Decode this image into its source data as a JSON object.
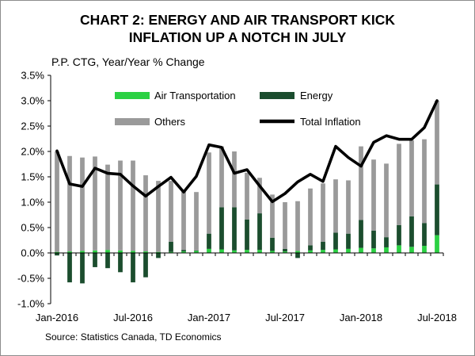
{
  "colors": {
    "air": "#2bd143",
    "energy": "#1b4d2e",
    "others": "#9a9a9a",
    "total": "#000000"
  },
  "chart_data": {
    "type": "bar",
    "title_lines": [
      "CHART 2: ENERGY AND AIR TRANSPORT KICK",
      "INFLATION UP A NOTCH IN JULY"
    ],
    "ylabel": "P.P. CTG, Year/Year % Change",
    "source": "Source: Statistics Canada, TD Economics",
    "ylim": [
      -1.0,
      3.5
    ],
    "yticks": [
      -1.0,
      -0.5,
      0.0,
      0.5,
      1.0,
      1.5,
      2.0,
      2.5,
      3.0,
      3.5
    ],
    "ytick_labels": [
      "-1.0%",
      "-0.5%",
      "0.0%",
      "0.5%",
      "1.0%",
      "1.5%",
      "2.0%",
      "2.5%",
      "3.0%",
      "3.5%"
    ],
    "xtick_labels": [
      {
        "index": 0,
        "label": "Jan-2016"
      },
      {
        "index": 6,
        "label": "Jul-2016"
      },
      {
        "index": 12,
        "label": "Jan-2017"
      },
      {
        "index": 18,
        "label": "Jul-2017"
      },
      {
        "index": 24,
        "label": "Jan-2018"
      },
      {
        "index": 30,
        "label": "Jul-2018"
      }
    ],
    "categories": [
      "Jan-2016",
      "Feb-2016",
      "Mar-2016",
      "Apr-2016",
      "May-2016",
      "Jun-2016",
      "Jul-2016",
      "Aug-2016",
      "Sep-2016",
      "Oct-2016",
      "Nov-2016",
      "Dec-2016",
      "Jan-2017",
      "Feb-2017",
      "Mar-2017",
      "Apr-2017",
      "May-2017",
      "Jun-2017",
      "Jul-2017",
      "Aug-2017",
      "Sep-2017",
      "Oct-2017",
      "Nov-2017",
      "Dec-2017",
      "Jan-2018",
      "Feb-2018",
      "Mar-2018",
      "Apr-2018",
      "May-2018",
      "Jun-2018",
      "Jul-2018"
    ],
    "series": [
      {
        "name": "Air Transportation",
        "type": "bar",
        "values": [
          0.02,
          0.03,
          0.04,
          0.05,
          0.06,
          0.05,
          0.04,
          0.03,
          0.02,
          0.02,
          0.03,
          0.04,
          0.08,
          0.07,
          0.05,
          0.06,
          0.06,
          0.04,
          0.03,
          0.04,
          0.05,
          0.06,
          0.07,
          0.08,
          0.1,
          0.09,
          0.11,
          0.15,
          0.12,
          0.14,
          0.35
        ]
      },
      {
        "name": "Energy",
        "type": "bar",
        "values": [
          -0.05,
          -0.58,
          -0.6,
          -0.28,
          -0.3,
          -0.38,
          -0.58,
          -0.48,
          -0.1,
          0.2,
          0.03,
          0.01,
          0.3,
          0.83,
          0.85,
          0.6,
          0.72,
          0.26,
          0.05,
          -0.1,
          0.1,
          0.16,
          0.33,
          0.3,
          0.55,
          0.35,
          0.2,
          0.4,
          0.6,
          0.45,
          1.0
        ]
      },
      {
        "name": "Others",
        "type": "bar",
        "values": [
          1.98,
          1.88,
          1.84,
          1.85,
          1.68,
          1.77,
          1.78,
          1.5,
          1.4,
          1.2,
          1.15,
          1.15,
          1.6,
          1.2,
          1.1,
          0.92,
          0.7,
          0.85,
          0.92,
          0.98,
          1.12,
          1.15,
          1.05,
          1.05,
          1.45,
          1.4,
          1.45,
          1.6,
          1.5,
          1.65,
          1.65
        ]
      },
      {
        "name": "Total Inflation",
        "type": "line",
        "values": [
          2.01,
          1.36,
          1.31,
          1.67,
          1.57,
          1.55,
          1.32,
          1.12,
          1.31,
          1.49,
          1.2,
          1.51,
          2.13,
          2.08,
          1.57,
          1.64,
          1.32,
          1.01,
          1.17,
          1.4,
          1.55,
          1.41,
          2.1,
          1.88,
          1.71,
          2.18,
          2.31,
          2.24,
          2.24,
          2.47,
          3.0
        ]
      }
    ],
    "legend": {
      "placement": "top-right",
      "items": [
        {
          "label": "Air Transportation",
          "kind": "box",
          "series": "air"
        },
        {
          "label": "Energy",
          "kind": "box",
          "series": "energy"
        },
        {
          "label": "Others",
          "kind": "box",
          "series": "others"
        },
        {
          "label": "Total Inflation",
          "kind": "line",
          "series": "total"
        }
      ]
    },
    "grid": false
  }
}
